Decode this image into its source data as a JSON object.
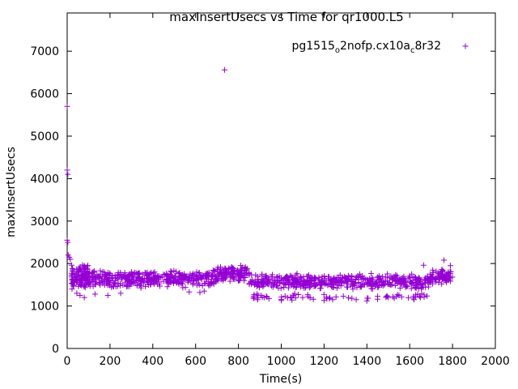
{
  "chart_data": {
    "type": "scatter",
    "title": "maxInsertUsecs vs Time for qr1000.L5",
    "xlabel": "Time(s)",
    "ylabel": "maxInsertUsecs",
    "xlim": [
      0,
      2000
    ],
    "ylim": [
      0,
      7900
    ],
    "x_ticks": [
      0,
      200,
      400,
      600,
      800,
      1000,
      1200,
      1400,
      1600,
      1800,
      2000
    ],
    "y_ticks": [
      0,
      1000,
      2000,
      3000,
      4000,
      5000,
      6000,
      7000
    ],
    "grid": false,
    "legend_position": "top-right",
    "marker": "+",
    "series": [
      {
        "name": "pg1515_o2nofp.cx10a_c8r32",
        "color": "#9400d3",
        "outliers": [
          [
            0,
            5700
          ],
          [
            0,
            4200
          ],
          [
            3,
            4100
          ],
          [
            0,
            2550
          ],
          [
            3,
            2500
          ],
          [
            735,
            6560
          ],
          [
            5,
            2200
          ],
          [
            10,
            2150
          ],
          [
            15,
            2100
          ],
          [
            45,
            1300
          ],
          [
            60,
            1250
          ],
          [
            80,
            1200
          ],
          [
            130,
            1280
          ],
          [
            190,
            1250
          ],
          [
            250,
            1300
          ],
          [
            570,
            1330
          ],
          [
            620,
            1320
          ],
          [
            640,
            1350
          ],
          [
            870,
            1180
          ],
          [
            890,
            1150
          ],
          [
            920,
            1200
          ],
          [
            1000,
            1130
          ],
          [
            1050,
            1140
          ],
          [
            1100,
            1200
          ],
          [
            1150,
            1160
          ],
          [
            1200,
            1130
          ],
          [
            1240,
            1150
          ],
          [
            1290,
            1230
          ],
          [
            1330,
            1180
          ],
          [
            1350,
            1150
          ],
          [
            1400,
            1120
          ],
          [
            1450,
            1160
          ],
          [
            1500,
            1200
          ],
          [
            1550,
            1250
          ],
          [
            1620,
            1150
          ],
          [
            1650,
            1200
          ],
          [
            1665,
            1960
          ],
          [
            1760,
            2080
          ],
          [
            1790,
            1950
          ]
        ],
        "segments": [
          {
            "x_range": [
              20,
              100
            ],
            "y_center": 1700,
            "y_spread": 320,
            "count": 110
          },
          {
            "x_range": [
              100,
              700
            ],
            "y_center": 1640,
            "y_spread": 220,
            "count": 420
          },
          {
            "x_range": [
              700,
              850
            ],
            "y_center": 1760,
            "y_spread": 220,
            "count": 120
          },
          {
            "x_range": [
              850,
              1700
            ],
            "y_center": 1580,
            "y_spread": 200,
            "count": 520
          },
          {
            "x_range": [
              850,
              1700
            ],
            "y_center": 1230,
            "y_spread": 80,
            "count": 55
          },
          {
            "x_range": [
              1700,
              1800
            ],
            "y_center": 1700,
            "y_spread": 200,
            "count": 70
          }
        ]
      }
    ]
  }
}
